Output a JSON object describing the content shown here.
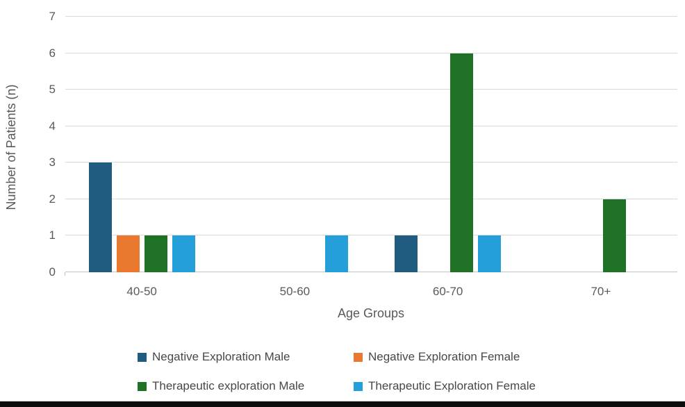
{
  "chart_data": {
    "type": "bar",
    "title": "",
    "categories": [
      "40-50",
      "50-60",
      "60-70",
      "70+"
    ],
    "series": [
      {
        "name": "Negative Exploration Male",
        "color": "#1F5C7F",
        "values": [
          3,
          0,
          1,
          0
        ]
      },
      {
        "name": "Negative Exploration Female",
        "color": "#E8792F",
        "values": [
          1,
          0,
          0,
          0
        ]
      },
      {
        "name": "Therapeutic exploration Male",
        "color": "#1E7125",
        "values": [
          1,
          0,
          6,
          2
        ]
      },
      {
        "name": "Therapeutic Exploration Female",
        "color": "#249FDA",
        "values": [
          1,
          1,
          1,
          0
        ]
      }
    ],
    "xlabel": "Age Groups",
    "ylabel": "Number of Patients (n)",
    "ylim": [
      0,
      7
    ],
    "yticks": [
      0,
      1,
      2,
      3,
      4,
      5,
      6,
      7
    ],
    "grid": true,
    "legend_position": "bottom",
    "colors": {
      "gridline": "#D9D9D9",
      "baseline": "#C3C3C3",
      "tick_text": "#595959",
      "legend_text": "#474747",
      "bottom_bar": "#0D0D0D",
      "background": "#FFFFFF"
    }
  }
}
